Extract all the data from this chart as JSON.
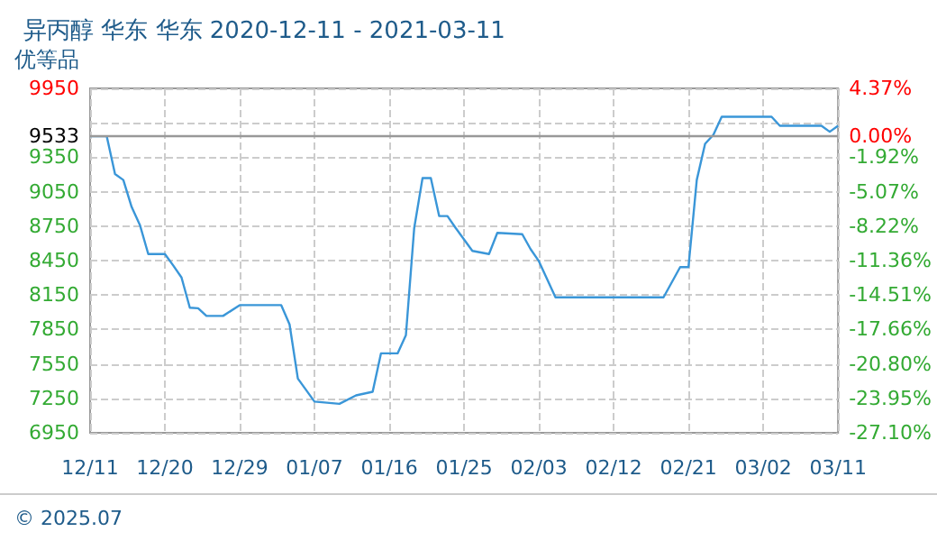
{
  "chart_data": {
    "type": "line",
    "title": "异丙醇 华东 华东 2020-12-11 - 2021-03-11",
    "subtitle": "优等品",
    "annotations": [
      "© 2025.07"
    ],
    "x": [
      "2020-12-11",
      "2020-12-13",
      "2020-12-14",
      "2020-12-15",
      "2020-12-16",
      "2020-12-17",
      "2020-12-18",
      "2020-12-20",
      "2020-12-21",
      "2020-12-22",
      "2020-12-23",
      "2020-12-24",
      "2020-12-25",
      "2020-12-27",
      "2020-12-29",
      "2021-01-03",
      "2021-01-04",
      "2021-01-05",
      "2021-01-07",
      "2021-01-10",
      "2021-01-12",
      "2021-01-14",
      "2021-01-15",
      "2021-01-17",
      "2021-01-18",
      "2021-01-19",
      "2021-01-20",
      "2021-01-21",
      "2021-01-22",
      "2021-01-23",
      "2021-01-24",
      "2021-01-26",
      "2021-01-28",
      "2021-01-29",
      "2021-02-01",
      "2021-02-02",
      "2021-02-03",
      "2021-02-05",
      "2021-02-18",
      "2021-02-20",
      "2021-02-21",
      "2021-02-22",
      "2021-02-23",
      "2021-02-24",
      "2021-02-25",
      "2021-03-03",
      "2021-03-04",
      "2021-03-09",
      "2021-03-10",
      "2021-03-11"
    ],
    "series": [
      {
        "color": "#3a96d8",
        "values": [
          9533,
          9533,
          9204,
          9152,
          8917,
          8759,
          8507,
          8507,
          8408,
          8303,
          8040,
          8035,
          7968,
          7968,
          8062,
          8062,
          7894,
          7422,
          7222,
          7202,
          7276,
          7307,
          7642,
          7642,
          7800,
          8733,
          9168,
          9168,
          8838,
          8838,
          8733,
          8534,
          8507,
          8691,
          8680,
          8550,
          8445,
          8130,
          8130,
          8393,
          8393,
          9152,
          9467,
          9546,
          9703,
          9703,
          9624,
          9624,
          9572,
          9624
        ]
      }
    ],
    "xlim": [
      "2020-12-11",
      "2021-03-11"
    ],
    "xticks": [
      {
        "value": "2020-12-11",
        "label": "12/11"
      },
      {
        "value": "2020-12-20",
        "label": "12/20"
      },
      {
        "value": "2020-12-29",
        "label": "12/29"
      },
      {
        "value": "2021-01-07",
        "label": "01/07"
      },
      {
        "value": "2021-01-16",
        "label": "01/16"
      },
      {
        "value": "2021-01-25",
        "label": "01/25"
      },
      {
        "value": "2021-02-03",
        "label": "02/03"
      },
      {
        "value": "2021-02-12",
        "label": "02/12"
      },
      {
        "value": "2021-02-21",
        "label": "02/21"
      },
      {
        "value": "2021-03-02",
        "label": "03/02"
      },
      {
        "value": "2021-03-11",
        "label": "03/11"
      }
    ],
    "ylim": [
      6950,
      9950
    ],
    "yticks": [
      6950,
      7250,
      7550,
      7850,
      8150,
      8450,
      8750,
      9050,
      9350,
      {
        "value": 9650,
        "label": null
      },
      9950
    ],
    "y2lim": [
      -27.1,
      4.37
    ],
    "y2ticks": [
      {
        "value": -27.1,
        "label": "-27.10%"
      },
      {
        "value": -23.95,
        "label": "-23.95%"
      },
      {
        "value": -20.8,
        "label": "-20.80%"
      },
      {
        "value": -17.66,
        "label": "-17.66%"
      },
      {
        "value": -14.51,
        "label": "-14.51%"
      },
      {
        "value": -11.36,
        "label": "-11.36%"
      },
      {
        "value": -8.22,
        "label": "-8.22%"
      },
      {
        "value": -5.07,
        "label": "-5.07%"
      },
      {
        "value": -1.92,
        "label": "-1.92%"
      },
      {
        "value": 0,
        "label": "0.00%"
      },
      {
        "value": 4.37,
        "label": "4.37%"
      }
    ],
    "ref_lines": [
      {
        "axis": "y",
        "value": 9533,
        "label": "9533",
        "color": "#999999"
      }
    ],
    "grid": true,
    "marker": "none",
    "line_style": "solid"
  }
}
